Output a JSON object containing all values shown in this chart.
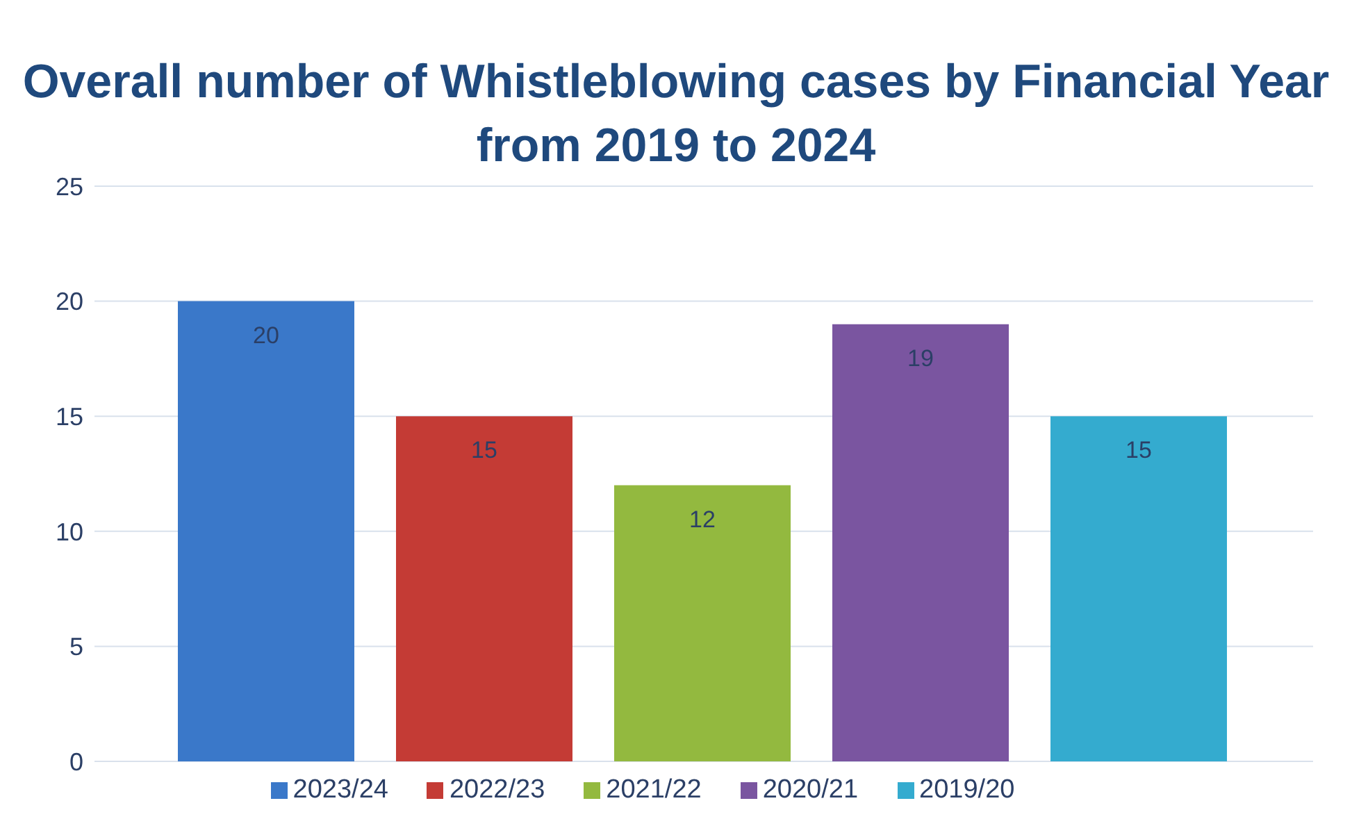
{
  "chart_data": {
    "type": "bar",
    "title": "Overall number of Whistleblowing cases by Financial Year from 2019 to 2024",
    "categories": [
      null
    ],
    "series": [
      {
        "name": "2023/24",
        "color": "#3a78c9",
        "values": [
          20
        ]
      },
      {
        "name": "2022/23",
        "color": "#c43b35",
        "values": [
          15
        ]
      },
      {
        "name": "2021/22",
        "color": "#93b93f",
        "values": [
          12
        ]
      },
      {
        "name": "2020/21",
        "color": "#7a55a0",
        "values": [
          19
        ]
      },
      {
        "name": "2019/20",
        "color": "#34abcf",
        "values": [
          15
        ]
      }
    ],
    "ylim": [
      0,
      25
    ],
    "yticks": [
      0,
      5,
      10,
      15,
      20,
      25
    ],
    "grid": "y",
    "legend": "bottom",
    "data_labels": true
  }
}
